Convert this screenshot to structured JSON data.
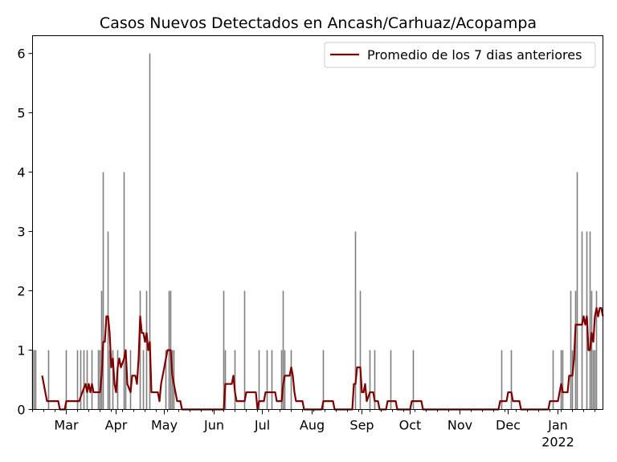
{
  "chart_data": {
    "type": "bar",
    "title": "Casos Nuevos Detectados en Ancash/Carhuaz/Acopampa",
    "xlabel": "",
    "ylabel": "",
    "ylim": [
      0,
      6.3
    ],
    "yticks": [
      0,
      1,
      2,
      3,
      4,
      5,
      6
    ],
    "x_range": [
      "2022-02-01",
      "2022-02-28"
    ],
    "xticks": [
      {
        "date": "2021-03-01",
        "label": "Mar"
      },
      {
        "date": "2021-04-01",
        "label": "Apr"
      },
      {
        "date": "2021-05-01",
        "label": "May"
      },
      {
        "date": "2021-06-01",
        "label": "Jun"
      },
      {
        "date": "2021-07-01",
        "label": "Jul"
      },
      {
        "date": "2021-08-01",
        "label": "Aug"
      },
      {
        "date": "2021-09-01",
        "label": "Sep"
      },
      {
        "date": "2021-10-01",
        "label": "Oct"
      },
      {
        "date": "2021-11-01",
        "label": "Nov"
      },
      {
        "date": "2021-12-01",
        "label": "Dec"
      },
      {
        "date": "2022-01-01",
        "label": "Jan"
      }
    ],
    "year_label": {
      "date": "2022-01-01",
      "label": "2022"
    },
    "bars": [
      {
        "x": "2021-02-08",
        "y": 1
      },
      {
        "x": "2021-02-09",
        "y": 1
      },
      {
        "x": "2021-02-10",
        "y": 1
      },
      {
        "x": "2021-02-18",
        "y": 1
      },
      {
        "x": "2021-03-01",
        "y": 1
      },
      {
        "x": "2021-03-08",
        "y": 1
      },
      {
        "x": "2021-03-10",
        "y": 1
      },
      {
        "x": "2021-03-12",
        "y": 1
      },
      {
        "x": "2021-03-14",
        "y": 1
      },
      {
        "x": "2021-03-17",
        "y": 1
      },
      {
        "x": "2021-03-21",
        "y": 1
      },
      {
        "x": "2021-03-22",
        "y": 1
      },
      {
        "x": "2021-03-23",
        "y": 2
      },
      {
        "x": "2021-03-24",
        "y": 4
      },
      {
        "x": "2021-03-27",
        "y": 3
      },
      {
        "x": "2021-03-28",
        "y": 1
      },
      {
        "x": "2021-03-30",
        "y": 1
      },
      {
        "x": "2021-04-02",
        "y": 1
      },
      {
        "x": "2021-04-06",
        "y": 4
      },
      {
        "x": "2021-04-07",
        "y": 1
      },
      {
        "x": "2021-04-10",
        "y": 1
      },
      {
        "x": "2021-04-16",
        "y": 2
      },
      {
        "x": "2021-04-18",
        "y": 1
      },
      {
        "x": "2021-04-20",
        "y": 2
      },
      {
        "x": "2021-04-22",
        "y": 6
      },
      {
        "x": "2021-05-02",
        "y": 1
      },
      {
        "x": "2021-05-04",
        "y": 2
      },
      {
        "x": "2021-05-05",
        "y": 2
      },
      {
        "x": "2021-05-06",
        "y": 1
      },
      {
        "x": "2021-05-07",
        "y": 1
      },
      {
        "x": "2021-06-07",
        "y": 2
      },
      {
        "x": "2021-06-08",
        "y": 1
      },
      {
        "x": "2021-06-14",
        "y": 1
      },
      {
        "x": "2021-06-20",
        "y": 2
      },
      {
        "x": "2021-06-29",
        "y": 1
      },
      {
        "x": "2021-07-04",
        "y": 1
      },
      {
        "x": "2021-07-07",
        "y": 1
      },
      {
        "x": "2021-07-13",
        "y": 1
      },
      {
        "x": "2021-07-14",
        "y": 2
      },
      {
        "x": "2021-07-15",
        "y": 1
      },
      {
        "x": "2021-07-19",
        "y": 1
      },
      {
        "x": "2021-08-08",
        "y": 1
      },
      {
        "x": "2021-08-28",
        "y": 3
      },
      {
        "x": "2021-08-31",
        "y": 2
      },
      {
        "x": "2021-09-06",
        "y": 1
      },
      {
        "x": "2021-09-09",
        "y": 1
      },
      {
        "x": "2021-09-19",
        "y": 1
      },
      {
        "x": "2021-10-03",
        "y": 1
      },
      {
        "x": "2021-11-27",
        "y": 1
      },
      {
        "x": "2021-12-03",
        "y": 1
      },
      {
        "x": "2021-12-29",
        "y": 1
      },
      {
        "x": "2022-01-03",
        "y": 1
      },
      {
        "x": "2022-01-04",
        "y": 1
      },
      {
        "x": "2022-01-09",
        "y": 2
      },
      {
        "x": "2022-01-10",
        "y": 1
      },
      {
        "x": "2022-01-12",
        "y": 2
      },
      {
        "x": "2022-01-13",
        "y": 4
      },
      {
        "x": "2022-01-16",
        "y": 3
      },
      {
        "x": "2022-01-19",
        "y": 3
      },
      {
        "x": "2022-01-21",
        "y": 3
      },
      {
        "x": "2022-01-22",
        "y": 2
      },
      {
        "x": "2022-01-23",
        "y": 1
      },
      {
        "x": "2022-01-24",
        "y": 1
      },
      {
        "x": "2022-01-25",
        "y": 2
      }
    ],
    "series": [
      {
        "name": "Promedio de los 7 dias anteriores",
        "color": "#800000",
        "points": [
          [
            "2021-02-14",
            0.57
          ],
          [
            "2021-02-17",
            0.14
          ],
          [
            "2021-02-24",
            0.14
          ],
          [
            "2021-02-25",
            0.0
          ],
          [
            "2021-02-28",
            0.0
          ],
          [
            "2021-03-01",
            0.14
          ],
          [
            "2021-03-09",
            0.14
          ],
          [
            "2021-03-11",
            0.29
          ],
          [
            "2021-03-13",
            0.43
          ],
          [
            "2021-03-14",
            0.29
          ],
          [
            "2021-03-15",
            0.43
          ],
          [
            "2021-03-16",
            0.29
          ],
          [
            "2021-03-17",
            0.43
          ],
          [
            "2021-03-18",
            0.29
          ],
          [
            "2021-03-22",
            0.29
          ],
          [
            "2021-03-23",
            0.57
          ],
          [
            "2021-03-24",
            1.14
          ],
          [
            "2021-03-25",
            1.14
          ],
          [
            "2021-03-26",
            1.57
          ],
          [
            "2021-03-27",
            1.57
          ],
          [
            "2021-03-28",
            1.29
          ],
          [
            "2021-03-29",
            0.71
          ],
          [
            "2021-03-30",
            0.86
          ],
          [
            "2021-03-31",
            0.43
          ],
          [
            "2021-04-01",
            0.29
          ],
          [
            "2021-04-02",
            0.71
          ],
          [
            "2021-04-03",
            0.86
          ],
          [
            "2021-04-04",
            0.71
          ],
          [
            "2021-04-06",
            0.86
          ],
          [
            "2021-04-07",
            1.0
          ],
          [
            "2021-04-08",
            0.43
          ],
          [
            "2021-04-10",
            0.29
          ],
          [
            "2021-04-11",
            0.57
          ],
          [
            "2021-04-13",
            0.57
          ],
          [
            "2021-04-14",
            0.43
          ],
          [
            "2021-04-15",
            0.86
          ],
          [
            "2021-04-16",
            1.57
          ],
          [
            "2021-04-17",
            1.29
          ],
          [
            "2021-04-18",
            1.29
          ],
          [
            "2021-04-19",
            1.14
          ],
          [
            "2021-04-20",
            1.29
          ],
          [
            "2021-04-21",
            1.0
          ],
          [
            "2021-04-22",
            1.14
          ],
          [
            "2021-04-23",
            0.29
          ],
          [
            "2021-04-27",
            0.29
          ],
          [
            "2021-04-28",
            0.14
          ],
          [
            "2021-04-29",
            0.43
          ],
          [
            "2021-04-30",
            0.57
          ],
          [
            "2021-05-01",
            0.71
          ],
          [
            "2021-05-03",
            1.0
          ],
          [
            "2021-05-05",
            1.0
          ],
          [
            "2021-05-06",
            0.57
          ],
          [
            "2021-05-09",
            0.14
          ],
          [
            "2021-05-11",
            0.14
          ],
          [
            "2021-05-12",
            0.0
          ],
          [
            "2021-05-31",
            0.0
          ],
          [
            "2021-06-01",
            0.0
          ],
          [
            "2021-06-07",
            0.0
          ],
          [
            "2021-06-08",
            0.43
          ],
          [
            "2021-06-12",
            0.43
          ],
          [
            "2021-06-13",
            0.57
          ],
          [
            "2021-06-14",
            0.29
          ],
          [
            "2021-06-15",
            0.14
          ],
          [
            "2021-06-20",
            0.14
          ],
          [
            "2021-06-21",
            0.29
          ],
          [
            "2021-06-27",
            0.29
          ],
          [
            "2021-06-28",
            0.0
          ],
          [
            "2021-06-29",
            0.14
          ],
          [
            "2021-07-02",
            0.14
          ],
          [
            "2021-07-03",
            0.29
          ],
          [
            "2021-07-09",
            0.29
          ],
          [
            "2021-07-10",
            0.14
          ],
          [
            "2021-07-13",
            0.14
          ],
          [
            "2021-07-14",
            0.43
          ],
          [
            "2021-07-15",
            0.57
          ],
          [
            "2021-07-18",
            0.57
          ],
          [
            "2021-07-19",
            0.71
          ],
          [
            "2021-07-20",
            0.57
          ],
          [
            "2021-07-21",
            0.29
          ],
          [
            "2021-07-22",
            0.14
          ],
          [
            "2021-07-26",
            0.14
          ],
          [
            "2021-07-27",
            0.0
          ],
          [
            "2021-08-07",
            0.0
          ],
          [
            "2021-08-08",
            0.14
          ],
          [
            "2021-08-14",
            0.14
          ],
          [
            "2021-08-15",
            0.0
          ],
          [
            "2021-08-24",
            0.0
          ],
          [
            "2021-08-26",
            0.0
          ],
          [
            "2021-08-27",
            0.43
          ],
          [
            "2021-08-28",
            0.43
          ],
          [
            "2021-08-29",
            0.71
          ],
          [
            "2021-08-31",
            0.71
          ],
          [
            "2021-09-01",
            0.29
          ],
          [
            "2021-09-02",
            0.29
          ],
          [
            "2021-09-03",
            0.43
          ],
          [
            "2021-09-04",
            0.14
          ],
          [
            "2021-09-06",
            0.29
          ],
          [
            "2021-09-08",
            0.29
          ],
          [
            "2021-09-09",
            0.14
          ],
          [
            "2021-09-11",
            0.14
          ],
          [
            "2021-09-12",
            0.0
          ],
          [
            "2021-09-16",
            0.0
          ],
          [
            "2021-09-17",
            0.14
          ],
          [
            "2021-09-22",
            0.14
          ],
          [
            "2021-09-23",
            0.0
          ],
          [
            "2021-09-30",
            0.0
          ],
          [
            "2021-10-01",
            0.0
          ],
          [
            "2021-10-02",
            0.14
          ],
          [
            "2021-10-08",
            0.14
          ],
          [
            "2021-10-09",
            0.0
          ],
          [
            "2021-11-25",
            0.0
          ],
          [
            "2021-11-26",
            0.14
          ],
          [
            "2021-11-30",
            0.14
          ],
          [
            "2021-12-01",
            0.29
          ],
          [
            "2021-12-03",
            0.29
          ],
          [
            "2021-12-04",
            0.14
          ],
          [
            "2021-12-08",
            0.14
          ],
          [
            "2021-12-09",
            0.0
          ],
          [
            "2021-12-26",
            0.0
          ],
          [
            "2021-12-27",
            0.14
          ],
          [
            "2022-01-01",
            0.14
          ],
          [
            "2022-01-02",
            0.29
          ],
          [
            "2022-01-03",
            0.43
          ],
          [
            "2022-01-04",
            0.29
          ],
          [
            "2022-01-07",
            0.29
          ],
          [
            "2022-01-08",
            0.57
          ],
          [
            "2022-01-10",
            0.57
          ],
          [
            "2022-01-11",
            0.86
          ],
          [
            "2022-01-12",
            1.43
          ],
          [
            "2022-01-16",
            1.43
          ],
          [
            "2022-01-17",
            1.57
          ],
          [
            "2022-01-18",
            1.43
          ],
          [
            "2022-01-19",
            1.57
          ],
          [
            "2022-01-20",
            1.0
          ],
          [
            "2022-01-21",
            1.0
          ],
          [
            "2022-01-22",
            1.29
          ],
          [
            "2022-01-23",
            1.14
          ],
          [
            "2022-01-24",
            1.57
          ],
          [
            "2022-01-25",
            1.71
          ],
          [
            "2022-01-26",
            1.57
          ],
          [
            "2022-01-27",
            1.71
          ],
          [
            "2022-01-28",
            1.71
          ],
          [
            "2022-01-29",
            1.57
          ]
        ]
      }
    ],
    "legend": {
      "position": "top-right",
      "entries": [
        "Promedio de los 7 dias anteriores"
      ]
    },
    "grid": false,
    "bar_color": "#808080"
  }
}
